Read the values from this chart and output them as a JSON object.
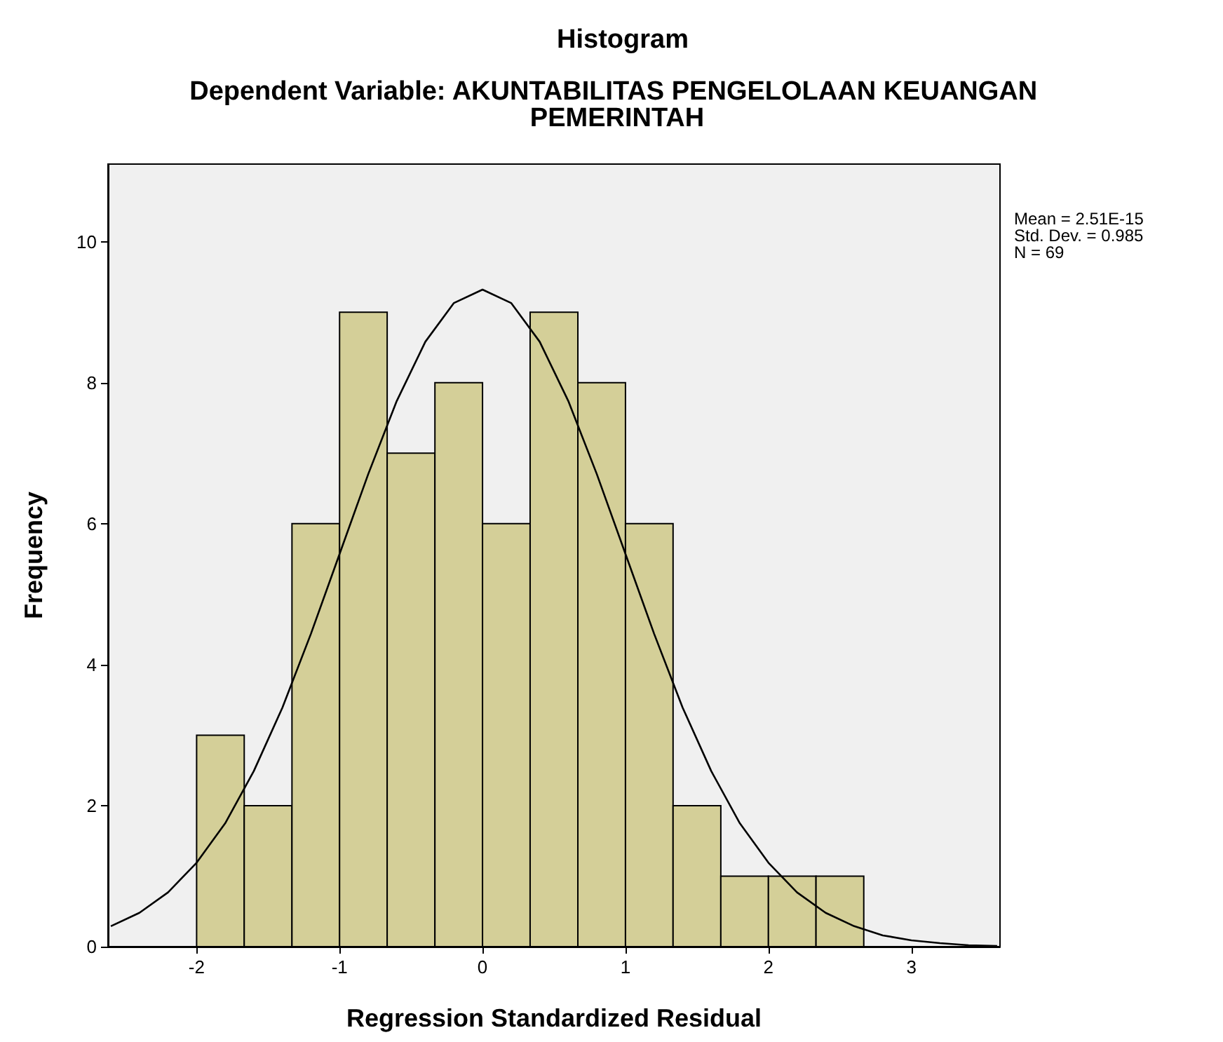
{
  "chart_data": {
    "type": "histogram",
    "title": "Histogram",
    "subtitle": "Dependent Variable: AKUNTABILITAS PENGELOLAAN KEUANGAN PEMERINTAH",
    "xlabel": "Regression Standardized Residual",
    "ylabel": "Frequency",
    "annotations": [
      "Mean = 2.51E-15",
      "Std. Dev. = 0.985",
      "N = 69"
    ],
    "series": [
      {
        "type": "histogram",
        "color": "#d4cf98",
        "bins": [
          -2,
          -1.667,
          -1.333,
          -1,
          -0.667,
          -0.333,
          0,
          0.333,
          0.667,
          1,
          1.333,
          1.667,
          2,
          2.333,
          2.667
        ],
        "values": [
          3,
          2,
          6,
          9,
          7,
          8,
          6,
          9,
          8,
          6,
          2,
          1,
          1,
          1
        ]
      },
      {
        "type": "line",
        "color": "#000000",
        "x": [
          -2.6,
          -2.4,
          -2.2,
          -2.0,
          -1.8,
          -1.6,
          -1.4,
          -1.2,
          -1.0,
          -0.8,
          -0.6,
          -0.4,
          -0.2,
          0,
          0.2,
          0.4,
          0.6,
          0.8,
          1.0,
          1.2,
          1.4,
          1.6,
          1.8,
          2.0,
          2.2,
          2.4,
          2.6,
          2.8,
          3.0,
          3.2,
          3.4,
          3.6
        ],
        "values": [
          0.29,
          0.48,
          0.77,
          1.19,
          1.75,
          2.49,
          3.39,
          4.44,
          5.57,
          6.7,
          7.74,
          8.58,
          9.13,
          9.32,
          9.13,
          8.58,
          7.74,
          6.7,
          5.57,
          4.44,
          3.39,
          2.49,
          1.75,
          1.19,
          0.77,
          0.48,
          0.29,
          0.16,
          0.09,
          0.05,
          0.02,
          0.01
        ]
      }
    ],
    "xlim": [
      -2.62,
      3.62
    ],
    "xticks": [
      -2,
      -1,
      0,
      1,
      2,
      3
    ],
    "ylim": [
      0,
      11.1
    ],
    "yticks": [
      0,
      2,
      4,
      6,
      8,
      10
    ],
    "grid": false
  }
}
